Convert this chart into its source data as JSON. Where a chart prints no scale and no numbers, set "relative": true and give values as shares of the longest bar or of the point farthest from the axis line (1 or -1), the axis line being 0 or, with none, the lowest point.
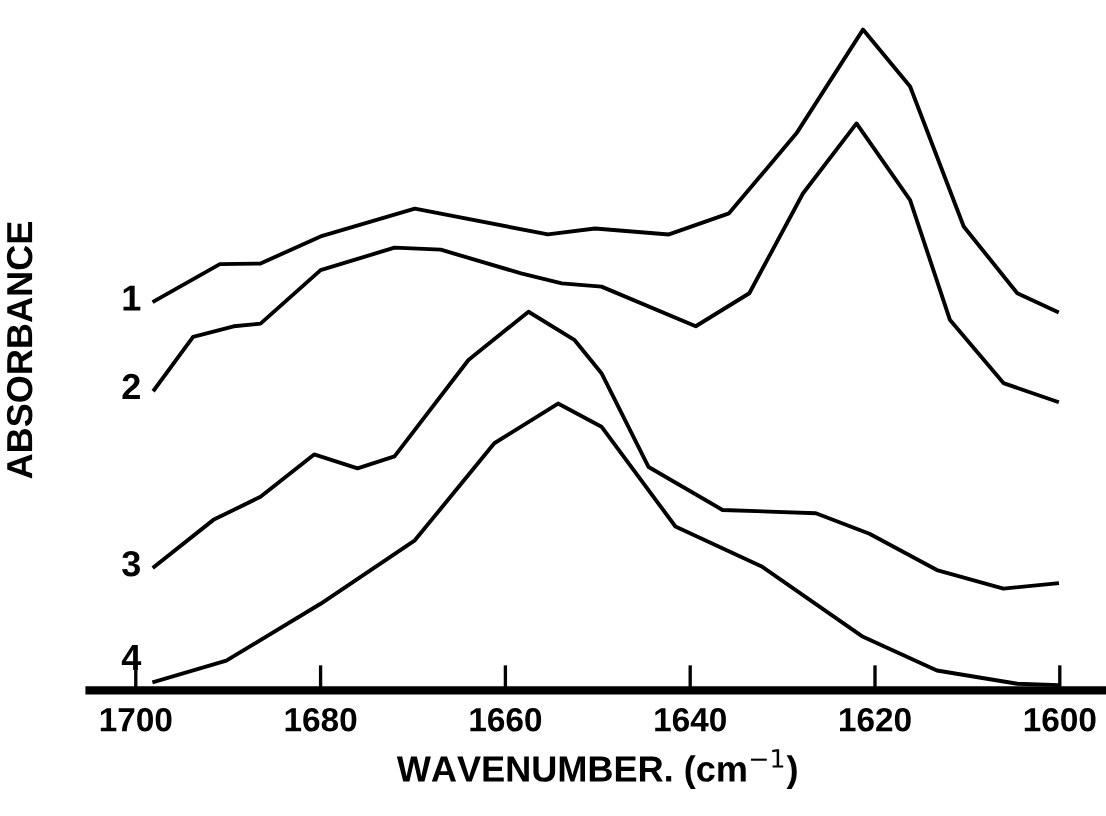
{
  "chart_data": {
    "type": "line",
    "relative": true,
    "xlabel": "WAVENUMBER. (cm$^{−1}$)",
    "ylabel": "ABSORBANCE",
    "xlim": [
      1705,
      1595
    ],
    "xticks": [
      1700,
      1680,
      1660,
      1640,
      1620,
      1600
    ],
    "tick_labels": "x",
    "grid": false,
    "legend": false,
    "marker": "none",
    "line_style": "solid",
    "series": [
      {
        "name": "1",
        "color": "#000000",
        "x": [
          1698,
          1690.9,
          1686.5,
          1680,
          1669.8,
          1655.4,
          1650.3,
          1642.3,
          1635.8,
          1628.5,
          1621.3,
          1616.2,
          1610.4,
          1604.6,
          1600.3
        ],
        "values": [
          0.589,
          0.645,
          0.646,
          0.687,
          0.729,
          0.69,
          0.699,
          0.69,
          0.722,
          0.843,
          1.0,
          0.914,
          0.702,
          0.601,
          0.573
        ]
      },
      {
        "name": "2",
        "color": "#000000",
        "x": [
          1698,
          1693.8,
          1689.4,
          1686.5,
          1680,
          1672,
          1667,
          1658.3,
          1653.9,
          1649.6,
          1639.4,
          1633.6,
          1627.8,
          1622,
          1616.2,
          1611.9,
          1606.1,
          1600.3
        ],
        "values": [
          0.455,
          0.535,
          0.551,
          0.555,
          0.636,
          0.67,
          0.667,
          0.631,
          0.616,
          0.611,
          0.551,
          0.601,
          0.752,
          0.858,
          0.742,
          0.561,
          0.465,
          0.437
        ]
      },
      {
        "name": "3",
        "color": "#000000",
        "x": [
          1698,
          1691.6,
          1686.5,
          1680.7,
          1676,
          1672,
          1664,
          1657.5,
          1652.5,
          1649.6,
          1644.5,
          1636.5,
          1626.4,
          1620.6,
          1613.3,
          1606.1,
          1600.3
        ],
        "values": [
          0.187,
          0.258,
          0.293,
          0.357,
          0.336,
          0.354,
          0.5,
          0.573,
          0.53,
          0.48,
          0.338,
          0.273,
          0.268,
          0.237,
          0.182,
          0.154,
          0.162
        ]
      },
      {
        "name": "4",
        "color": "#000000",
        "x": [
          1698,
          1690.2,
          1680,
          1669.8,
          1661.2,
          1654.3,
          1649.6,
          1641.6,
          1632.2,
          1621.3,
          1613.3,
          1604.6,
          1600.3
        ],
        "values": [
          0.013,
          0.045,
          0.131,
          0.227,
          0.374,
          0.434,
          0.399,
          0.248,
          0.187,
          0.081,
          0.03,
          0.01,
          0.008
        ]
      }
    ]
  }
}
